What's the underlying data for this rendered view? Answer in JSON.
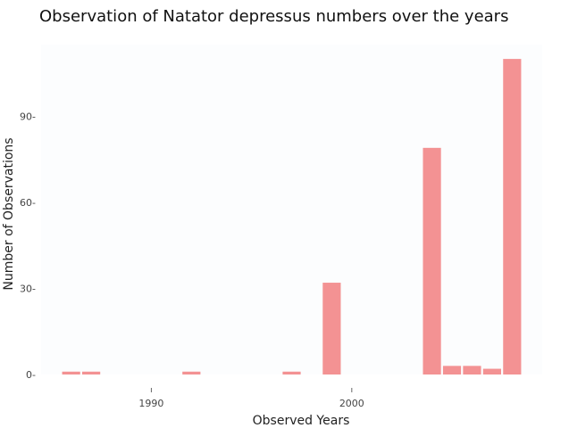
{
  "chart_data": {
    "type": "bar",
    "title": "Observation of Natator depressus numbers over the years",
    "xlabel": "Observed Years",
    "ylabel": "Number of Observations",
    "x_ticks": [
      1990,
      2000
    ],
    "y_ticks": [
      0,
      30,
      60,
      90
    ],
    "ylim": [
      0,
      115
    ],
    "xlim": [
      1984.5,
      2009.5
    ],
    "grid": false,
    "bar_color": "#f39293",
    "plot_bg": "#fcfdfe",
    "series": [
      {
        "x": [
          1986,
          1987,
          1992,
          1997,
          1999,
          2004,
          2005,
          2006,
          2007,
          2008
        ],
        "values": [
          1,
          1,
          1,
          1,
          32,
          79,
          3,
          3,
          2,
          110
        ]
      }
    ]
  }
}
